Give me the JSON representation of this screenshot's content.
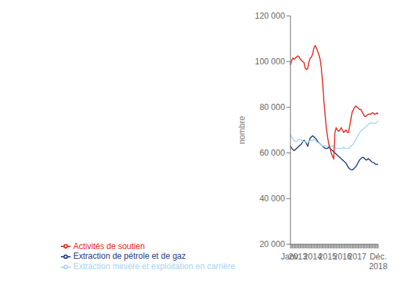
{
  "chart_data": {
    "type": "line",
    "title": "",
    "ylabel": "nombre",
    "categories": [
      "Janv.",
      null,
      null,
      null,
      null,
      null,
      "2013",
      null,
      null,
      null,
      null,
      null,
      null,
      null,
      null,
      null,
      null,
      null,
      "2014",
      null,
      null,
      null,
      null,
      null,
      null,
      null,
      null,
      null,
      null,
      null,
      "2015",
      null,
      null,
      null,
      null,
      null,
      null,
      null,
      null,
      null,
      null,
      null,
      "2016",
      null,
      null,
      null,
      null,
      null,
      null,
      null,
      null,
      null,
      null,
      null,
      "2017",
      null,
      null,
      null,
      null,
      null,
      null,
      null,
      null,
      null,
      null,
      null,
      null,
      null,
      null,
      null,
      null,
      "Déc.\n2018"
    ],
    "series": [
      {
        "name": "Extraction de pétrole et de gaz",
        "color": "#1f3b7a",
        "values": [
          63000,
          62000,
          61500,
          61000,
          61500,
          62000,
          62500,
          63000,
          63500,
          64000,
          65000,
          65500,
          65000,
          64000,
          63000,
          65000,
          66500,
          67000,
          67500,
          67000,
          66500,
          66000,
          65000,
          64500,
          64000,
          63500,
          63000,
          62500,
          62000,
          62000,
          62000,
          62500,
          62000,
          61500,
          61000,
          60500,
          60000,
          59500,
          59000,
          58500,
          58000,
          57500,
          57000,
          56500,
          56000,
          55500,
          54500,
          53500,
          53000,
          52700,
          52500,
          53000,
          53500,
          54000,
          55000,
          56000,
          57000,
          57500,
          58000,
          58000,
          57500,
          57000,
          57000,
          57500,
          57000,
          56500,
          56000,
          55800,
          55500,
          55000,
          55000,
          55000
        ]
      },
      {
        "name": "Extraction minière et exploitation en carrière",
        "color": "#a8d4f0",
        "values": [
          68000,
          67000,
          66000,
          65500,
          65000,
          65000,
          65500,
          66000,
          66000,
          65500,
          65000,
          65000,
          65000,
          64500,
          64500,
          65000,
          65500,
          65500,
          65500,
          66000,
          65500,
          65000,
          64500,
          64500,
          64000,
          63500,
          63000,
          63000,
          63000,
          63000,
          63000,
          63000,
          63000,
          63000,
          63000,
          63000,
          62500,
          62000,
          62000,
          62000,
          62000,
          62000,
          62000,
          62500,
          62000,
          62000,
          62000,
          62000,
          62500,
          63000,
          63500,
          64000,
          65000,
          66000,
          67000,
          68000,
          69000,
          69500,
          70000,
          70500,
          71000,
          71500,
          72000,
          72500,
          73000,
          73000,
          73000,
          73000,
          73000,
          73000,
          73500,
          74000
        ]
      },
      {
        "name": "Activités de soutien",
        "color": "#e8241c",
        "values": [
          98500,
          100500,
          101500,
          101000,
          101500,
          102000,
          102500,
          102000,
          101000,
          100500,
          100000,
          99500,
          97000,
          96500,
          97000,
          100000,
          101500,
          102000,
          103500,
          106000,
          107000,
          106000,
          104500,
          103000,
          101000,
          97000,
          91000,
          83000,
          77000,
          71000,
          67000,
          64000,
          62000,
          60000,
          58500,
          57500,
          69000,
          71000,
          70000,
          69500,
          70000,
          71000,
          70000,
          69000,
          69500,
          70000,
          69000,
          69000,
          72000,
          75000,
          78000,
          79000,
          80000,
          80500,
          80000,
          79500,
          79000,
          79000,
          78000,
          77000,
          76000,
          76000,
          76500,
          77000,
          77000,
          77000,
          77500,
          77500,
          77000,
          77000,
          77500,
          77000
        ]
      }
    ],
    "ylim": [
      20000,
      120000
    ],
    "yticks": [
      {
        "value": 20000,
        "label": "20 000"
      },
      {
        "value": 40000,
        "label": "40 000"
      },
      {
        "value": 60000,
        "label": "60 000"
      },
      {
        "value": 80000,
        "label": "80 000"
      },
      {
        "value": 100000,
        "label": "100 000"
      },
      {
        "value": 120000,
        "label": "120 000"
      }
    ],
    "grid": false,
    "legend": "lower left"
  }
}
